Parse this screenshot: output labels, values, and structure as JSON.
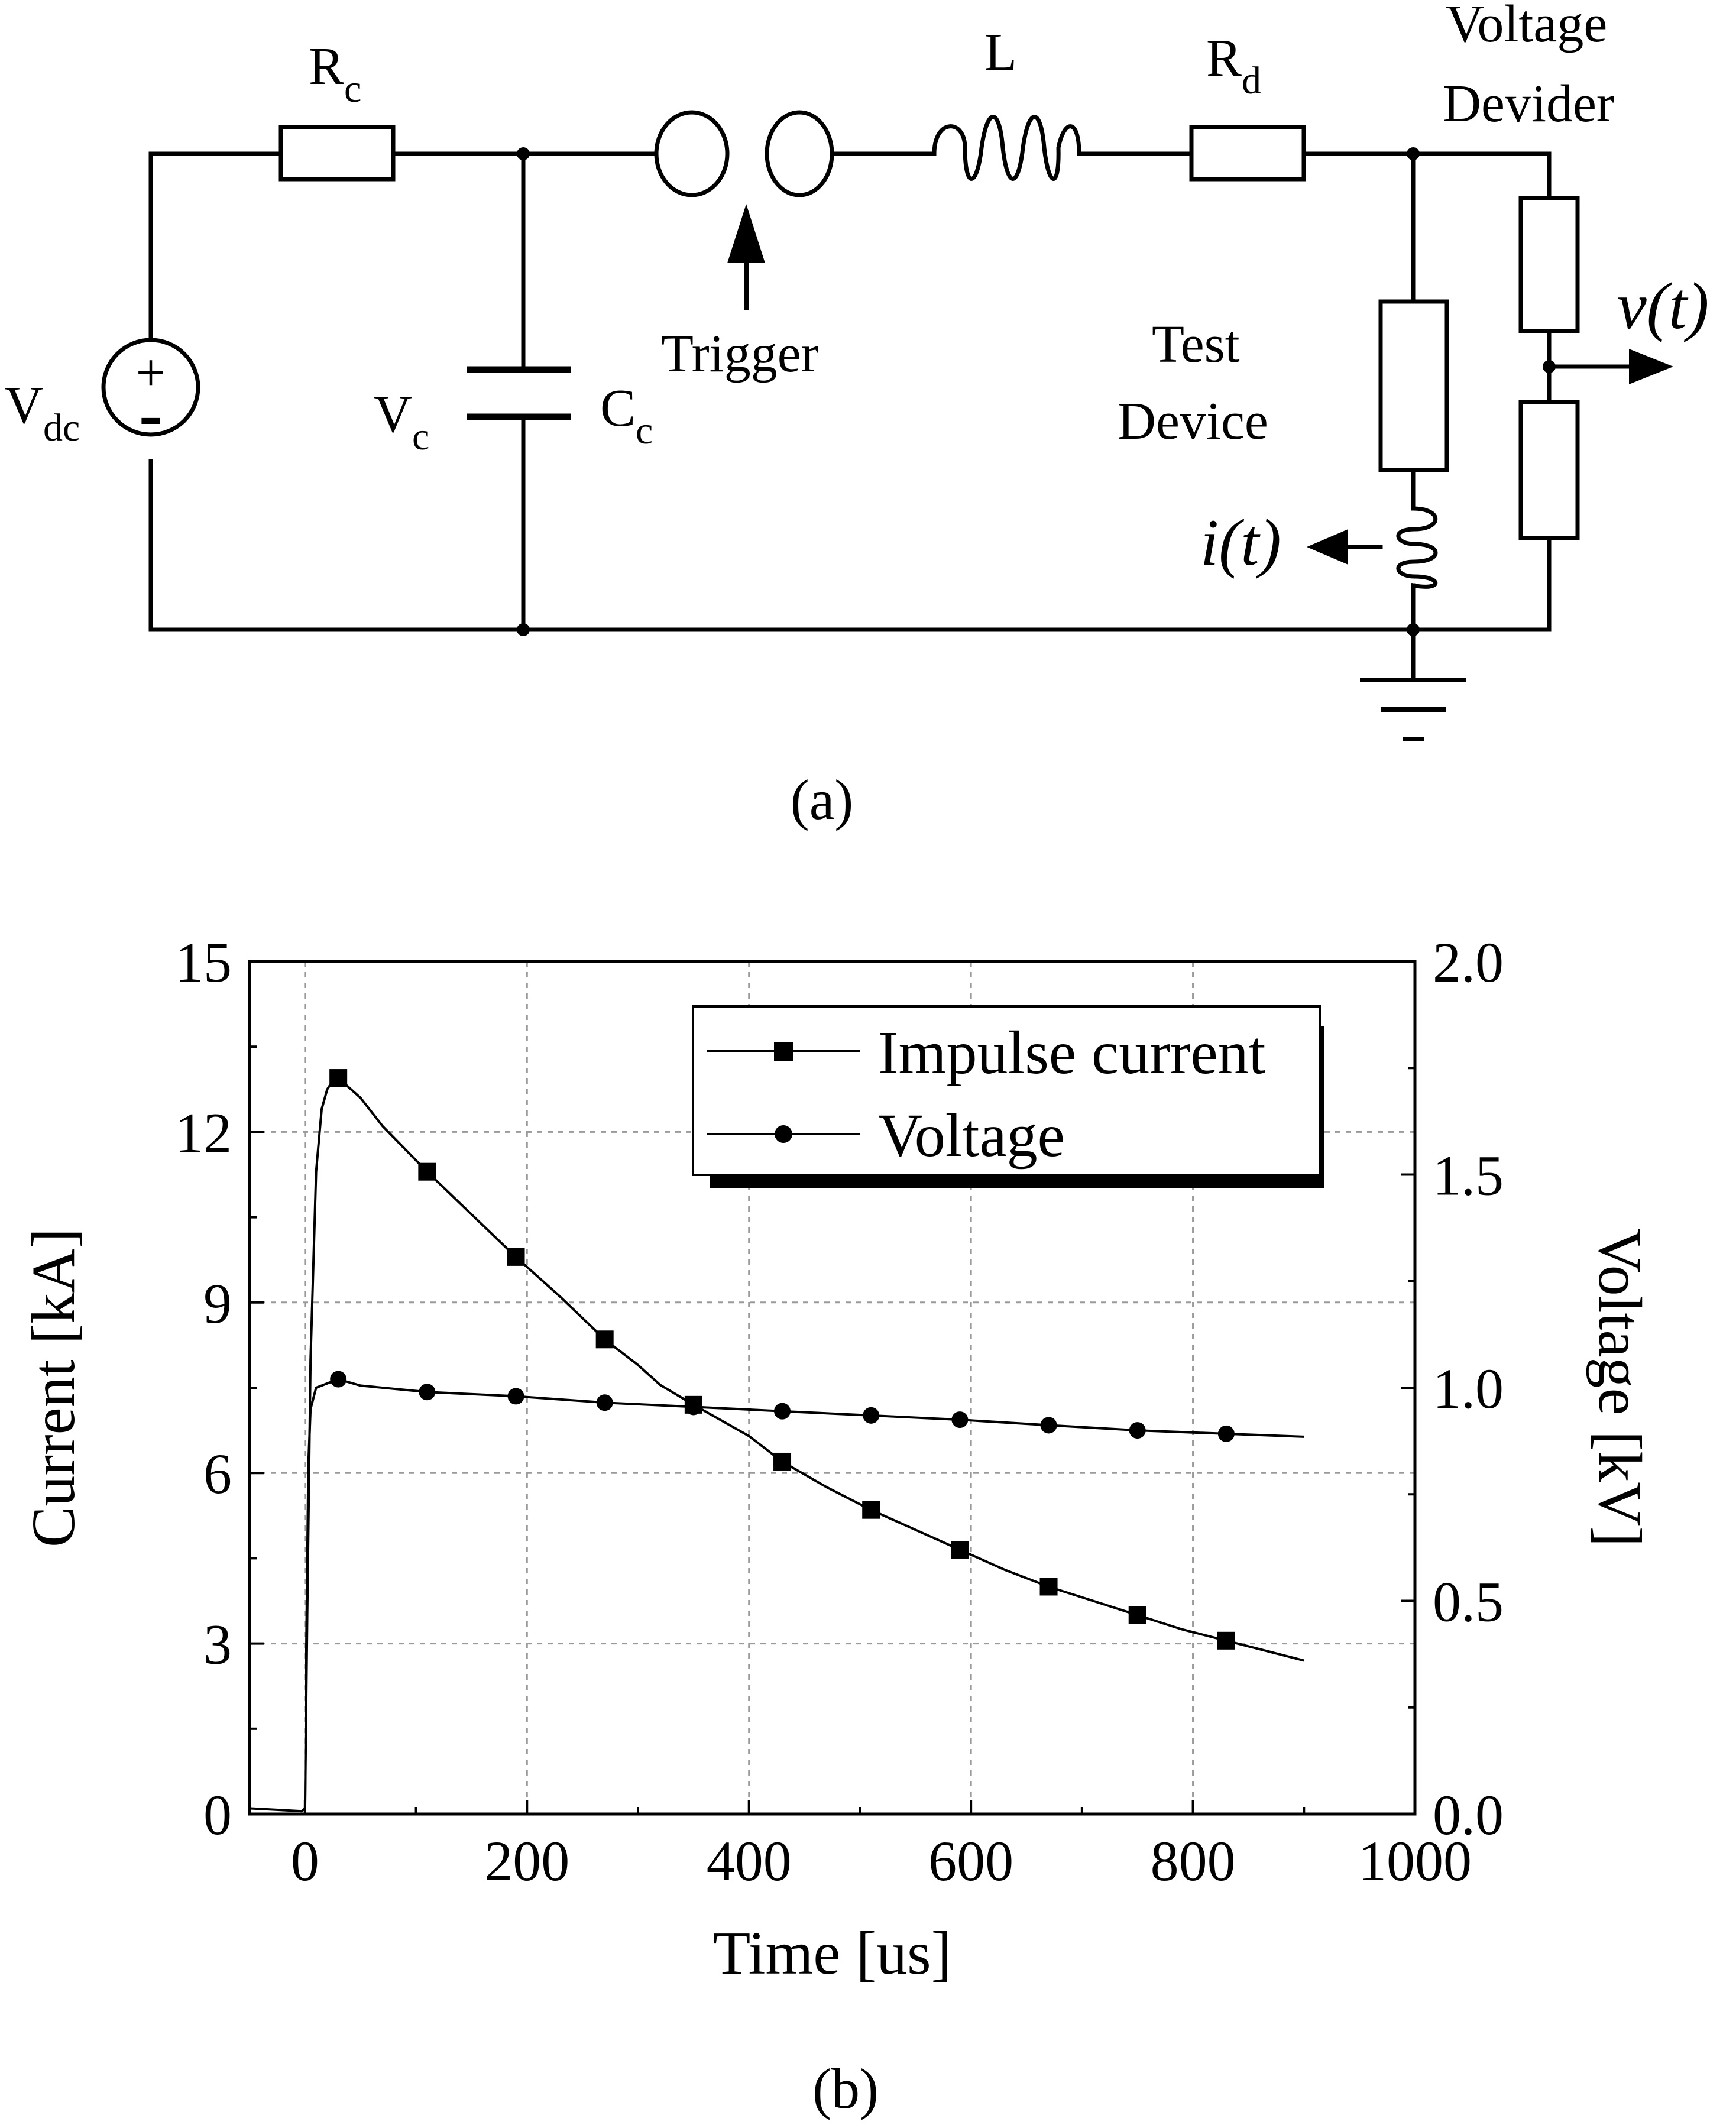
{
  "circuit": {
    "labels": {
      "rc_main": "R",
      "rc_sub": "c",
      "l": "L",
      "rd_main": "R",
      "rd_sub": "d",
      "voltage_divider_line1": "Voltage",
      "voltage_divider_line2": "Devider",
      "vdc_main": "V",
      "vdc_sub": "dc",
      "vc_main": "V",
      "vc_sub": "c",
      "cc_main": "C",
      "cc_sub": "c",
      "trigger": "Trigger",
      "test_device_line1": "Test",
      "test_device_line2": "Device",
      "v_t": "v(t)",
      "i_t": "i(t)",
      "source_plus": "+",
      "source_minus": "-"
    },
    "caption": "(a)"
  },
  "caption_b": "(b)",
  "chart_data": {
    "type": "line",
    "xlabel": "Time [us]",
    "ylabel": "Current [kA]",
    "y2label": "Voltage [kV]",
    "xlim": [
      -50,
      1000
    ],
    "ylim": [
      0,
      15
    ],
    "y2lim": [
      0,
      2.0
    ],
    "xticks": [
      0,
      200,
      400,
      600,
      800,
      1000
    ],
    "yticks": [
      0,
      3,
      6,
      9,
      12,
      15
    ],
    "y2ticks": [
      "0.0",
      "0.5",
      "1.0",
      "1.5",
      "2.0"
    ],
    "grid": true,
    "legend_position": "top-right",
    "series": [
      {
        "name": "Impulse current",
        "axis": "left",
        "marker": "square",
        "x": [
          -50,
          -3,
          0,
          2,
          5,
          10,
          15,
          20,
          25,
          30,
          50,
          70,
          90,
          110,
          150,
          190,
          230,
          270,
          300,
          320,
          350,
          400,
          430,
          470,
          510,
          550,
          590,
          630,
          670,
          710,
          750,
          790,
          830,
          870,
          900
        ],
        "y": [
          0.1,
          0.05,
          0.1,
          3.5,
          8.0,
          11.3,
          12.4,
          12.75,
          12.9,
          12.95,
          12.6,
          12.1,
          11.7,
          11.3,
          10.55,
          9.8,
          9.1,
          8.35,
          7.9,
          7.55,
          7.2,
          6.65,
          6.2,
          5.75,
          5.35,
          5.0,
          4.65,
          4.3,
          4.0,
          3.75,
          3.5,
          3.25,
          3.05,
          2.85,
          2.7
        ],
        "markers_x": [
          30,
          110,
          190,
          270,
          350,
          430,
          510,
          590,
          670,
          750,
          830
        ]
      },
      {
        "name": "Voltage",
        "axis": "right",
        "marker": "circle",
        "x": [
          0,
          1,
          3,
          5,
          10,
          20,
          30,
          50,
          110,
          190,
          270,
          350,
          430,
          510,
          590,
          670,
          750,
          830,
          900
        ],
        "y": [
          0.0,
          0.35,
          0.82,
          0.95,
          1.0,
          1.01,
          1.02,
          1.005,
          0.99,
          0.98,
          0.965,
          0.955,
          0.945,
          0.935,
          0.925,
          0.912,
          0.9,
          0.892,
          0.885
        ],
        "markers_x": [
          30,
          110,
          190,
          270,
          350,
          430,
          510,
          590,
          670,
          750,
          830
        ]
      }
    ]
  }
}
